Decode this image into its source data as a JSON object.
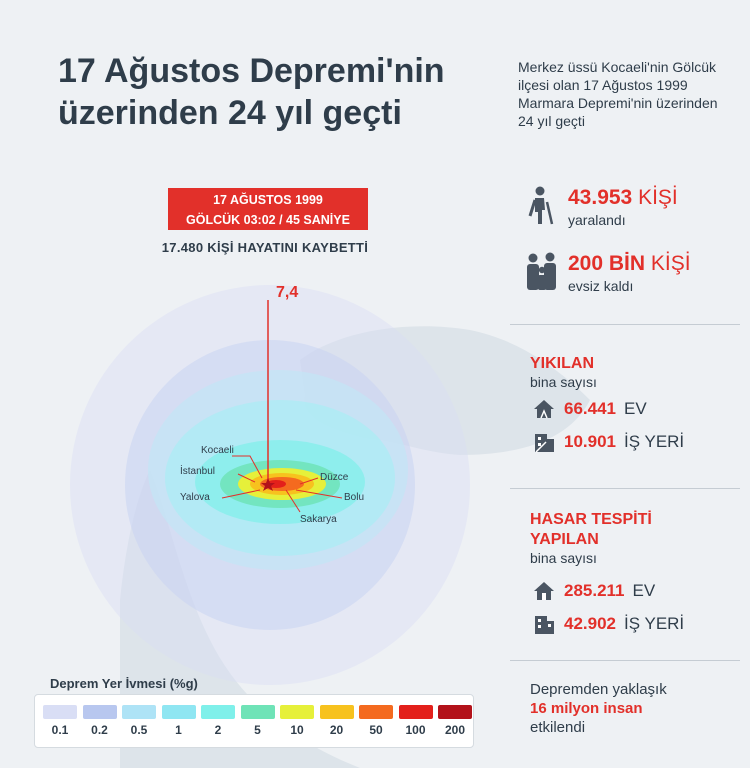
{
  "title": "17 Ağustos Depremi'nin üzerinden 24 yıl geçti",
  "intro": "Merkez üssü Kocaeli'nin Gölcük ilçesi olan 17 Ağustos 1999 Marmara Depremi'nin üzerinden 24 yıl geçti",
  "quake": {
    "date_line": "17 AĞUSTOS 1999",
    "time_line": "GÖLCÜK 03:02 / 45 SANİYE",
    "deaths": "17.480 KİŞİ HAYATINI KAYBETTİ",
    "magnitude": "7,4"
  },
  "cities": {
    "kocaeli": "Kocaeli",
    "istanbul": "İstanbul",
    "yalova": "Yalova",
    "duzce": "Düzce",
    "bolu": "Bolu",
    "sakarya": "Sakarya"
  },
  "stats": {
    "injured": {
      "number": "43.953",
      "unit": "KİŞİ",
      "label": "yaralandı",
      "icon": "injured-person-icon"
    },
    "homeless": {
      "number": "200 BİN",
      "unit": "KİŞİ",
      "label": "evsiz kaldı",
      "icon": "family-icon"
    }
  },
  "collapsed": {
    "title": "YIKILAN",
    "subtitle": "bina sayısı",
    "homes": {
      "number": "66.441",
      "unit": "EV"
    },
    "workplaces": {
      "number": "10.901",
      "unit": "İŞ YERİ"
    }
  },
  "damaged": {
    "title1": "HASAR TESPİTİ",
    "title2": "YAPILAN",
    "subtitle": "bina sayısı",
    "homes": {
      "number": "285.211",
      "unit": "EV"
    },
    "workplaces": {
      "number": "42.902",
      "unit": "İŞ YERİ"
    }
  },
  "affected": {
    "line1": "Depremden yaklaşık",
    "highlight": "16 milyon insan",
    "line3": "etkilendi"
  },
  "legend": {
    "title": "Deprem Yer İvmesi (%g)",
    "items": [
      {
        "label": "0.1",
        "color": "#d9def5"
      },
      {
        "label": "0.2",
        "color": "#b8c7ef"
      },
      {
        "label": "0.5",
        "color": "#aee3f6"
      },
      {
        "label": "1",
        "color": "#8fe6f2"
      },
      {
        "label": "2",
        "color": "#7ff0ea"
      },
      {
        "label": "5",
        "color": "#6fe3b7"
      },
      {
        "label": "10",
        "color": "#e6f03a"
      },
      {
        "label": "20",
        "color": "#f7c21e"
      },
      {
        "label": "50",
        "color": "#f46a1f"
      },
      {
        "label": "100",
        "color": "#e3201b"
      },
      {
        "label": "200",
        "color": "#b3121a"
      }
    ]
  },
  "colors": {
    "accent": "#e2302a",
    "text": "#2f3d4a"
  }
}
